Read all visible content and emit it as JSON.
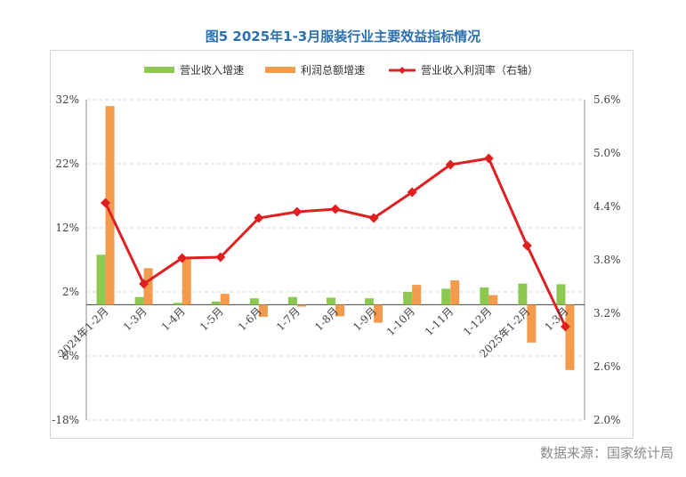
{
  "title": "图5 2025年1-3月服装行业主要效益指标情况",
  "source": "数据来源：国家统计局",
  "chart_data": {
    "type": "bar",
    "categories": [
      "2024年1-2月",
      "1-3月",
      "1-4月",
      "1-5月",
      "1-6月",
      "1-7月",
      "1-8月",
      "1-9月",
      "1-10月",
      "1-11月",
      "1-12月",
      "2025年1-2月",
      "1-3月"
    ],
    "series": [
      {
        "name": "营业收入增速",
        "type": "bar",
        "axis": "left",
        "color": "#8dc950",
        "values": [
          7.8,
          1.2,
          0.3,
          0.5,
          1.0,
          1.2,
          1.1,
          1.0,
          2.0,
          2.5,
          2.7,
          3.3,
          3.2
        ]
      },
      {
        "name": "利润总额增速",
        "type": "bar",
        "axis": "left",
        "color": "#f39a4c",
        "values": [
          31.0,
          5.7,
          7.4,
          1.7,
          -1.9,
          -0.3,
          -1.8,
          -2.8,
          3.1,
          3.8,
          1.5,
          -5.9,
          -10.2
        ]
      },
      {
        "name": "营业收入利润率（右轴）",
        "type": "line",
        "axis": "right",
        "color": "#e02020",
        "values": [
          4.44,
          3.53,
          3.82,
          3.83,
          4.27,
          4.34,
          4.37,
          4.27,
          4.56,
          4.87,
          4.94,
          3.96,
          3.05
        ]
      }
    ],
    "y_left": {
      "ticks": [
        "32%",
        "22%",
        "12%",
        "2%",
        "-8%",
        "-18%"
      ],
      "range": [
        -18,
        32
      ],
      "step": 10
    },
    "y_right": {
      "ticks": [
        "5.6%",
        "5.0%",
        "4.4%",
        "3.8%",
        "3.2%",
        "2.6%",
        "2.0%"
      ],
      "range": [
        2.0,
        5.6
      ],
      "step": 0.6
    },
    "grid": true,
    "legend_position": "top"
  }
}
